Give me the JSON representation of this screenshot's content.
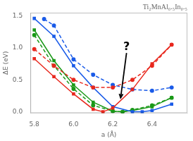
{
  "chart_data": {
    "type": "line",
    "title": "Ti₂MnAl₀.₅In₀.₅",
    "x_label": "a (Å)",
    "y_label": "ΔE (eV)",
    "xlim": [
      5.78,
      6.58
    ],
    "ylim": [
      -0.02,
      1.55
    ],
    "xticks": [
      5.8,
      {
        "value": 6.0,
        "label": "6.0"
      },
      6.2,
      6.4
    ],
    "yticks": [
      {
        "value": 0,
        "label": "0.0"
      },
      0.5,
      {
        "value": 1.0,
        "label": "1.0"
      },
      1.5
    ],
    "grid": false,
    "series": [
      {
        "color": "#e8281e",
        "line_style": "solid",
        "marker": "square",
        "x": [
          5.8,
          5.9,
          6.0,
          6.1,
          6.15,
          6.2,
          6.3,
          6.4,
          6.5
        ],
        "values": [
          0.83,
          0.55,
          0.28,
          0.04,
          0.0,
          0.06,
          0.35,
          0.75,
          1.05
        ]
      },
      {
        "color": "#e8281e",
        "line_style": "dashed",
        "marker": "circle",
        "x": [
          5.8,
          5.9,
          6.0,
          6.1,
          6.2,
          6.3,
          6.4,
          6.5
        ],
        "values": [
          0.98,
          0.72,
          0.5,
          0.38,
          0.38,
          0.5,
          0.72,
          1.05
        ]
      },
      {
        "color": "#1a5be8",
        "line_style": "solid",
        "marker": "square",
        "x": [
          5.8,
          5.9,
          6.0,
          6.1,
          6.2,
          6.3,
          6.35,
          6.4,
          6.5
        ],
        "values": [
          1.46,
          1.18,
          0.72,
          0.38,
          0.08,
          0.0,
          0.0,
          0.02,
          0.12
        ]
      },
      {
        "color": "#1a5be8",
        "line_style": "dashed",
        "marker": "circle",
        "x": [
          5.85,
          5.9,
          6.0,
          6.1,
          6.2,
          6.3,
          6.4,
          6.5
        ],
        "values": [
          1.45,
          1.35,
          0.82,
          0.58,
          0.42,
          0.35,
          0.33,
          0.38
        ]
      },
      {
        "color": "#1a9918",
        "line_style": "solid",
        "marker": "square",
        "x": [
          5.8,
          5.9,
          6.0,
          6.1,
          6.2,
          6.25,
          6.3,
          6.4,
          6.5
        ],
        "values": [
          1.28,
          0.8,
          0.42,
          0.15,
          0.01,
          0.0,
          0.02,
          0.08,
          0.22
        ]
      },
      {
        "color": "#1a9918",
        "line_style": "dashed",
        "marker": "circle",
        "x": [
          5.8,
          5.9,
          6.0,
          6.1,
          6.2,
          6.25,
          6.3,
          6.4,
          6.5
        ],
        "values": [
          1.2,
          0.72,
          0.36,
          0.1,
          0.01,
          0.0,
          0.03,
          0.1,
          0.22
        ]
      }
    ],
    "annotations": [
      {
        "text": "?",
        "x": 6.27,
        "y": 0.92,
        "arrow_x": 6.24,
        "arrow_y": 0.22
      }
    ]
  }
}
